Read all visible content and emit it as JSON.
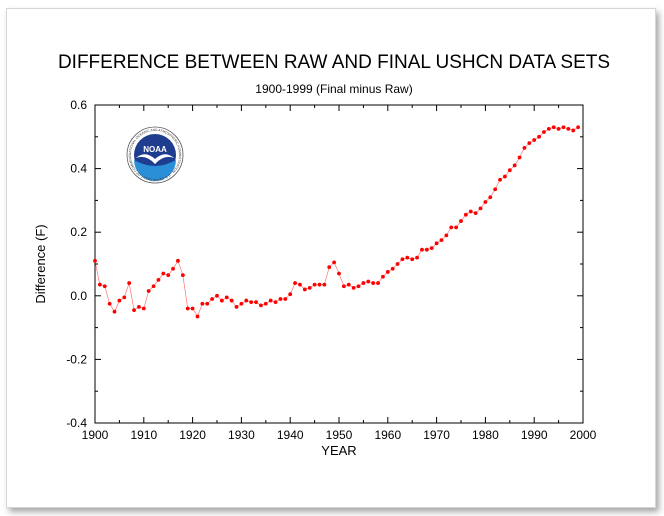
{
  "chart_data": {
    "type": "line",
    "title": "DIFFERENCE BETWEEN RAW AND FINAL USHCN DATA SETS",
    "subtitle": "1900-1999 (Final minus Raw)",
    "xlabel": "YEAR",
    "ylabel": "Difference (F)",
    "xlim": [
      1900,
      2000
    ],
    "ylim": [
      -0.4,
      0.6
    ],
    "xticks": [
      "1900",
      "1910",
      "1920",
      "1930",
      "1940",
      "1950",
      "1960",
      "1970",
      "1980",
      "1990",
      "2000"
    ],
    "yticks": [
      "-0.4",
      "-0.2",
      "0.0",
      "0.2",
      "0.4",
      "0.6"
    ],
    "grid": false,
    "series": [
      {
        "name": "Final minus Raw",
        "color": "#ff0000",
        "x": [
          1900,
          1901,
          1902,
          1903,
          1904,
          1905,
          1906,
          1907,
          1908,
          1909,
          1910,
          1911,
          1912,
          1913,
          1914,
          1915,
          1916,
          1917,
          1918,
          1919,
          1920,
          1921,
          1922,
          1923,
          1924,
          1925,
          1926,
          1927,
          1928,
          1929,
          1930,
          1931,
          1932,
          1933,
          1934,
          1935,
          1936,
          1937,
          1938,
          1939,
          1940,
          1941,
          1942,
          1943,
          1944,
          1945,
          1946,
          1947,
          1948,
          1949,
          1950,
          1951,
          1952,
          1953,
          1954,
          1955,
          1956,
          1957,
          1958,
          1959,
          1960,
          1961,
          1962,
          1963,
          1964,
          1965,
          1966,
          1967,
          1968,
          1969,
          1970,
          1971,
          1972,
          1973,
          1974,
          1975,
          1976,
          1977,
          1978,
          1979,
          1980,
          1981,
          1982,
          1983,
          1984,
          1985,
          1986,
          1987,
          1988,
          1989,
          1990,
          1991,
          1992,
          1993,
          1994,
          1995,
          1996,
          1997,
          1998,
          1999
        ],
        "values": [
          0.11,
          0.035,
          0.03,
          -0.025,
          -0.05,
          -0.015,
          -0.005,
          0.04,
          -0.045,
          -0.035,
          -0.04,
          0.015,
          0.03,
          0.05,
          0.07,
          0.065,
          0.085,
          0.11,
          0.065,
          -0.04,
          -0.04,
          -0.065,
          -0.025,
          -0.025,
          -0.01,
          0.0,
          -0.015,
          -0.005,
          -0.015,
          -0.035,
          -0.025,
          -0.015,
          -0.02,
          -0.02,
          -0.03,
          -0.025,
          -0.015,
          -0.02,
          -0.01,
          -0.01,
          0.005,
          0.04,
          0.035,
          0.02,
          0.025,
          0.035,
          0.035,
          0.035,
          0.09,
          0.105,
          0.07,
          0.03,
          0.035,
          0.025,
          0.03,
          0.04,
          0.045,
          0.04,
          0.04,
          0.06,
          0.075,
          0.085,
          0.1,
          0.115,
          0.12,
          0.115,
          0.12,
          0.145,
          0.145,
          0.15,
          0.165,
          0.175,
          0.19,
          0.215,
          0.215,
          0.235,
          0.255,
          0.265,
          0.26,
          0.275,
          0.295,
          0.31,
          0.335,
          0.365,
          0.375,
          0.395,
          0.41,
          0.435,
          0.465,
          0.48,
          0.49,
          0.5,
          0.515,
          0.525,
          0.53,
          0.525,
          0.53,
          0.525,
          0.52,
          0.53
        ]
      }
    ]
  },
  "logo": {
    "text": "NOAA",
    "ring_text": "NATIONAL OCEANIC AND ATMOSPHERIC ADMINISTRATION · U.S. DEPARTMENT OF COMMERCE"
  }
}
